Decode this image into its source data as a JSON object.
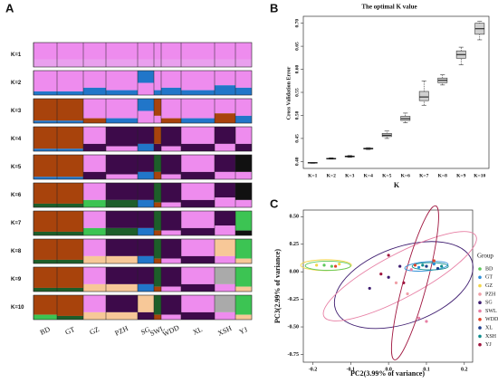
{
  "chart_data": [
    {
      "type": "structure",
      "panel": "A",
      "rows": [
        "K=1",
        "K=2",
        "K=3",
        "K=4",
        "K=5",
        "K=6",
        "K=7",
        "K=8",
        "K=9",
        "K=10"
      ],
      "groups": [
        "BD",
        "GT",
        "GZ",
        "PZH",
        "SG",
        "SWL",
        "WDD",
        "XL",
        "XSH",
        "YJ"
      ],
      "blocks": [
        [
          {
            "top": "#ee8cee",
            "bottom": "#e9a0ee",
            "bottom_share": 0.3
          },
          {
            "top": "#ee8cee",
            "bottom": "#e9a0ee",
            "bottom_share": 0.3
          },
          {
            "top": "#ee8cee",
            "bottom": "#e9a0ee",
            "bottom_share": 0.3
          },
          {
            "top": "#ee8cee",
            "bottom": "#e9a0ee",
            "bottom_share": 0.3
          },
          {
            "top": "#ee8cee",
            "bottom": "#e9a0ee",
            "bottom_share": 0.3
          },
          {
            "top": "#ee8cee",
            "bottom": "#e9a0ee",
            "bottom_share": 0.3
          },
          {
            "top": "#ee8cee",
            "bottom": "#e9a0ee",
            "bottom_share": 0.3
          },
          {
            "top": "#ee8cee",
            "bottom": "#e9a0ee",
            "bottom_share": 0.3
          },
          {
            "top": "#ee8cee",
            "bottom": "#e9a0ee",
            "bottom_share": 0.3
          },
          {
            "top": "#ee8cee",
            "bottom": "#e9a0ee",
            "bottom_share": 0.3
          }
        ],
        [
          {
            "top": "#ee8cee",
            "bottom": "#2176c9",
            "bottom_share": 0.15
          },
          {
            "top": "#ee8cee",
            "bottom": "#2176c9",
            "bottom_share": 0.15
          },
          {
            "top": "#ee8cee",
            "bottom": "#2176c9",
            "bottom_share": 0.3
          },
          {
            "top": "#ee8cee",
            "bottom": "#2176c9",
            "bottom_share": 0.2
          },
          {
            "top": "#2176c9",
            "bottom": "#ee8cee",
            "bottom_share": 0.5
          },
          {
            "top": "#ee8cee",
            "bottom": "#2176c9",
            "bottom_share": 0.2
          },
          {
            "top": "#ee8cee",
            "bottom": "#2176c9",
            "bottom_share": 0.3
          },
          {
            "top": "#ee8cee",
            "bottom": "#2176c9",
            "bottom_share": 0.2
          },
          {
            "top": "#ee8cee",
            "bottom": "#2176c9",
            "bottom_share": 0.4
          },
          {
            "top": "#ee8cee",
            "bottom": "#2176c9",
            "bottom_share": 0.3
          }
        ],
        [
          {
            "top": "#a8430c",
            "bottom": "#2176c9",
            "bottom_share": 0.1
          },
          {
            "top": "#a8430c",
            "bottom": "#2176c9",
            "bottom_share": 0.1
          },
          {
            "top": "#ee8cee",
            "bottom": "#a8430c",
            "bottom_share": 0.2
          },
          {
            "top": "#ee8cee",
            "bottom": "#2176c9",
            "bottom_share": 0.2
          },
          {
            "top": "#2176c9",
            "bottom": "#ee8cee",
            "bottom_share": 0.5
          },
          {
            "top": "#a8430c",
            "bottom": "#ee8cee",
            "bottom_share": 0.3
          },
          {
            "top": "#ee8cee",
            "bottom": "#a8430c",
            "bottom_share": 0.2
          },
          {
            "top": "#ee8cee",
            "bottom": "#2176c9",
            "bottom_share": 0.2
          },
          {
            "top": "#ee8cee",
            "bottom": "#a8430c",
            "bottom_share": 0.4
          },
          {
            "top": "#ee8cee",
            "bottom": "#2176c9",
            "bottom_share": 0.3
          }
        ],
        [
          {
            "top": "#a8430c",
            "bottom": "#2176c9",
            "bottom_share": 0.1
          },
          {
            "top": "#a8430c",
            "bottom": "#2176c9",
            "bottom_share": 0.1
          },
          {
            "top": "#ee8cee",
            "bottom": "#3d0a4a",
            "bottom_share": 0.3
          },
          {
            "top": "#3d0a4a",
            "bottom": "#ee8cee",
            "bottom_share": 0.2
          },
          {
            "top": "#3d0a4a",
            "bottom": "#2176c9",
            "bottom_share": 0.3
          },
          {
            "top": "#a8430c",
            "bottom": "#3d0a4a",
            "bottom_share": 0.3
          },
          {
            "top": "#3d0a4a",
            "bottom": "#ee8cee",
            "bottom_share": 0.2
          },
          {
            "top": "#ee8cee",
            "bottom": "#3d0a4a",
            "bottom_share": 0.3
          },
          {
            "top": "#3d0a4a",
            "bottom": "#ee8cee",
            "bottom_share": 0.3
          },
          {
            "top": "#ee8cee",
            "bottom": "#3d0a4a",
            "bottom_share": 0.3
          }
        ],
        [
          {
            "top": "#a8430c",
            "bottom": "#2176c9",
            "bottom_share": 0.1
          },
          {
            "top": "#a8430c",
            "bottom": "#2176c9",
            "bottom_share": 0.1
          },
          {
            "top": "#ee8cee",
            "bottom": "#3d0a4a",
            "bottom_share": 0.3
          },
          {
            "top": "#3d0a4a",
            "bottom": "#ee8cee",
            "bottom_share": 0.2
          },
          {
            "top": "#3d0a4a",
            "bottom": "#2176c9",
            "bottom_share": 0.3
          },
          {
            "top": "#1d5e2a",
            "bottom": "#a8430c",
            "bottom_share": 0.3
          },
          {
            "top": "#3d0a4a",
            "bottom": "#ee8cee",
            "bottom_share": 0.2
          },
          {
            "top": "#ee8cee",
            "bottom": "#3d0a4a",
            "bottom_share": 0.3
          },
          {
            "top": "#3d0a4a",
            "bottom": "#ee8cee",
            "bottom_share": 0.3
          },
          {
            "top": "#111111",
            "bottom": "#ee8cee",
            "bottom_share": 0.3
          }
        ],
        [
          {
            "top": "#a8430c",
            "bottom": "#1d5e2a",
            "bottom_share": 0.15
          },
          {
            "top": "#a8430c",
            "bottom": "#1d5e2a",
            "bottom_share": 0.15
          },
          {
            "top": "#ee8cee",
            "bottom": "#3cc453",
            "bottom_share": 0.3
          },
          {
            "top": "#3d0a4a",
            "bottom": "#1d5e2a",
            "bottom_share": 0.3
          },
          {
            "top": "#3d0a4a",
            "bottom": "#2176c9",
            "bottom_share": 0.3
          },
          {
            "top": "#1d5e2a",
            "bottom": "#a8430c",
            "bottom_share": 0.2
          },
          {
            "top": "#3d0a4a",
            "bottom": "#ee8cee",
            "bottom_share": 0.2
          },
          {
            "top": "#ee8cee",
            "bottom": "#3d0a4a",
            "bottom_share": 0.3
          },
          {
            "top": "#3d0a4a",
            "bottom": "#ee8cee",
            "bottom_share": 0.4
          },
          {
            "top": "#111111",
            "bottom": "#ee8cee",
            "bottom_share": 0.3
          }
        ],
        [
          {
            "top": "#a8430c",
            "bottom": "#1d5e2a",
            "bottom_share": 0.15
          },
          {
            "top": "#a8430c",
            "bottom": "#1d5e2a",
            "bottom_share": 0.15
          },
          {
            "top": "#ee8cee",
            "bottom": "#3cc453",
            "bottom_share": 0.3
          },
          {
            "top": "#3d0a4a",
            "bottom": "#1d5e2a",
            "bottom_share": 0.3
          },
          {
            "top": "#3d0a4a",
            "bottom": "#2176c9",
            "bottom_share": 0.3
          },
          {
            "top": "#1d5e2a",
            "bottom": "#a8430c",
            "bottom_share": 0.2
          },
          {
            "top": "#3d0a4a",
            "bottom": "#ee8cee",
            "bottom_share": 0.2
          },
          {
            "top": "#ee8cee",
            "bottom": "#3d0a4a",
            "bottom_share": 0.3
          },
          {
            "top": "#3d0a4a",
            "bottom": "#ee8cee",
            "bottom_share": 0.4
          },
          {
            "top": "#3cc453",
            "bottom": "#111111",
            "bottom_share": 0.2
          }
        ],
        [
          {
            "top": "#a8430c",
            "bottom": "#1d5e2a",
            "bottom_share": 0.15
          },
          {
            "top": "#a8430c",
            "bottom": "#1d5e2a",
            "bottom_share": 0.15
          },
          {
            "top": "#ee8cee",
            "bottom": "#f7c898",
            "bottom_share": 0.3
          },
          {
            "top": "#3d0a4a",
            "bottom": "#f7c898",
            "bottom_share": 0.3
          },
          {
            "top": "#3d0a4a",
            "bottom": "#2176c9",
            "bottom_share": 0.3
          },
          {
            "top": "#1d5e2a",
            "bottom": "#a8430c",
            "bottom_share": 0.2
          },
          {
            "top": "#3d0a4a",
            "bottom": "#ee8cee",
            "bottom_share": 0.2
          },
          {
            "top": "#ee8cee",
            "bottom": "#3d0a4a",
            "bottom_share": 0.3
          },
          {
            "top": "#f7c898",
            "bottom": "#ee8cee",
            "bottom_share": 0.3
          },
          {
            "top": "#3cc453",
            "bottom": "#f7c898",
            "bottom_share": 0.2
          }
        ],
        [
          {
            "top": "#a8430c",
            "bottom": "#1d5e2a",
            "bottom_share": 0.15
          },
          {
            "top": "#a8430c",
            "bottom": "#1d5e2a",
            "bottom_share": 0.15
          },
          {
            "top": "#ee8cee",
            "bottom": "#f7c898",
            "bottom_share": 0.3
          },
          {
            "top": "#3d0a4a",
            "bottom": "#f7c898",
            "bottom_share": 0.3
          },
          {
            "top": "#3d0a4a",
            "bottom": "#2176c9",
            "bottom_share": 0.3
          },
          {
            "top": "#1d5e2a",
            "bottom": "#a8430c",
            "bottom_share": 0.2
          },
          {
            "top": "#3d0a4a",
            "bottom": "#ee8cee",
            "bottom_share": 0.2
          },
          {
            "top": "#ee8cee",
            "bottom": "#3d0a4a",
            "bottom_share": 0.3
          },
          {
            "top": "#aaaaaa",
            "bottom": "#ee8cee",
            "bottom_share": 0.3
          },
          {
            "top": "#3cc453",
            "bottom": "#f7c898",
            "bottom_share": 0.2
          }
        ],
        [
          {
            "top": "#a8430c",
            "bottom": "#3cc453",
            "bottom_share": 0.2
          },
          {
            "top": "#a8430c",
            "bottom": "#1d5e2a",
            "bottom_share": 0.15
          },
          {
            "top": "#ee8cee",
            "bottom": "#f7c898",
            "bottom_share": 0.3
          },
          {
            "top": "#3d0a4a",
            "bottom": "#f7c898",
            "bottom_share": 0.3
          },
          {
            "top": "#f7c898",
            "bottom": "#3d0a4a",
            "bottom_share": 0.3
          },
          {
            "top": "#1d5e2a",
            "bottom": "#a8430c",
            "bottom_share": 0.2
          },
          {
            "top": "#3d0a4a",
            "bottom": "#ee8cee",
            "bottom_share": 0.2
          },
          {
            "top": "#ee8cee",
            "bottom": "#3d0a4a",
            "bottom_share": 0.3
          },
          {
            "top": "#aaaaaa",
            "bottom": "#ee8cee",
            "bottom_share": 0.3
          },
          {
            "top": "#3cc453",
            "bottom": "#f7c898",
            "bottom_share": 0.2
          }
        ]
      ]
    },
    {
      "type": "box",
      "panel": "B",
      "title": "The optimal K value",
      "x_label": "K",
      "y_label": "Cross Validation Error",
      "categories": [
        "K=1",
        "K=2",
        "K=3",
        "K=4",
        "K=5",
        "K=6",
        "K=7",
        "K=8",
        "K=9",
        "K=10"
      ],
      "min": [
        0.396,
        0.405,
        0.409,
        0.426,
        0.45,
        0.484,
        0.522,
        0.566,
        0.61,
        0.664
      ],
      "q1": [
        0.397,
        0.406,
        0.41,
        0.427,
        0.454,
        0.489,
        0.532,
        0.571,
        0.624,
        0.676
      ],
      "median": [
        0.397,
        0.406,
        0.411,
        0.428,
        0.457,
        0.493,
        0.54,
        0.576,
        0.632,
        0.688
      ],
      "q3": [
        0.398,
        0.407,
        0.412,
        0.429,
        0.461,
        0.498,
        0.552,
        0.581,
        0.64,
        0.7
      ],
      "max": [
        0.398,
        0.408,
        0.413,
        0.43,
        0.466,
        0.505,
        0.575,
        0.588,
        0.648,
        0.704
      ],
      "color": "#d0d0d0",
      "ylim": [
        0.385,
        0.715
      ],
      "yticks": [
        {
          "value": 0.4,
          "label": "0.40"
        },
        {
          "value": 0.45,
          "label": "0.45"
        },
        {
          "value": 0.5,
          "label": "0.50"
        },
        {
          "value": 0.55,
          "label": "0.55"
        },
        {
          "value": 0.6,
          "label": "0.60"
        },
        {
          "value": 0.65,
          "label": "0.65"
        },
        {
          "value": 0.7,
          "label": "0.70"
        }
      ]
    },
    {
      "type": "scatter",
      "panel": "C",
      "x_label": "PC2(3.99% of variance)",
      "y_label": "PC3(2.99% of variance)",
      "legend_title": "Group",
      "xlim": [
        -0.225,
        0.222
      ],
      "ylim": [
        -0.82,
        0.56
      ],
      "xticks": [
        -0.2,
        -0.1,
        {
          "value": 0,
          "label": "0.0"
        },
        0.1,
        0.2
      ],
      "yticks": [
        {
          "value": -0.75,
          "label": "-0.75"
        },
        {
          "value": -0.5,
          "label": "-0.50"
        },
        {
          "value": -0.25,
          "label": "-0.25"
        },
        {
          "value": 0,
          "label": "0.00"
        },
        {
          "value": 0.25,
          "label": "0.25"
        },
        {
          "value": 0.5,
          "label": "0.50"
        }
      ],
      "series": [
        {
          "name": "BD",
          "color": "#5cc85a",
          "x": [
            -0.17,
            -0.15,
            0.1
          ],
          "y": [
            0.06,
            0.05,
            0.05
          ]
        },
        {
          "name": "GT",
          "color": "#2f8fd8",
          "x": [
            0.12,
            0.08
          ],
          "y": [
            0.07,
            0.04
          ]
        },
        {
          "name": "GZ",
          "color": "#f2d648",
          "x": [
            -0.19,
            -0.13
          ],
          "y": [
            0.06,
            0.07
          ]
        },
        {
          "name": "PZH",
          "color": "#f0a0a8",
          "x": [
            0.02,
            0.05
          ],
          "y": [
            -0.1,
            -0.2
          ]
        },
        {
          "name": "SG",
          "color": "#3f1d70",
          "x": [
            0.0,
            0.03,
            -0.05
          ],
          "y": [
            -0.05,
            0.05,
            -0.15
          ]
        },
        {
          "name": "SWL",
          "color": "#e77fa4",
          "x": [
            0.06,
            0.1,
            0.08
          ],
          "y": [
            0.02,
            -0.45,
            -0.42
          ]
        },
        {
          "name": "WDD",
          "color": "#e0442b",
          "x": [
            -0.14,
            0.07,
            0.12
          ],
          "y": [
            0.05,
            0.06,
            0.1
          ]
        },
        {
          "name": "XL",
          "color": "#1f3f8e",
          "x": [
            0.1,
            0.13
          ],
          "y": [
            0.05,
            0.03
          ]
        },
        {
          "name": "XSH",
          "color": "#0e8c8c",
          "x": [
            0.09,
            0.14
          ],
          "y": [
            0.06,
            0.05
          ]
        },
        {
          "name": "YJ",
          "color": "#a0163f",
          "x": [
            0.0,
            -0.02,
            0.04
          ],
          "y": [
            0.15,
            -0.02,
            -0.1
          ]
        }
      ]
    }
  ]
}
